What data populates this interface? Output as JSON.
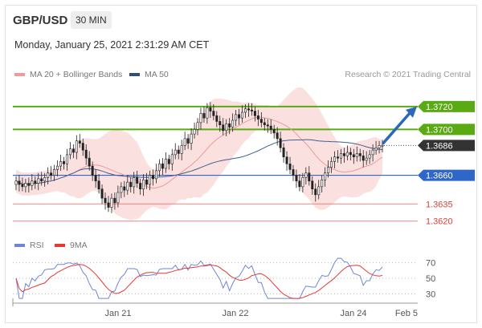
{
  "header": {
    "pair": "GBP/USD",
    "timeframe": "30 MIN",
    "datetime": "Monday, January 25, 2021 2:31:29 AM CET",
    "copyright": "Research © 2021 Trading Central"
  },
  "legend": {
    "ma20": "MA 20 + Bollinger Bands",
    "ma50": "MA 50",
    "rsi": "RSI",
    "rsi_ma": "9MA"
  },
  "colors": {
    "resistance": "#5aaa14",
    "pivot": "#2f66c9",
    "support": "#f08282",
    "current": "#333333",
    "candle_up": "#ffffff",
    "candle_down": "#222222",
    "bollinger": "#fadada",
    "ma20": "#ef9a9a",
    "ma50": "#3f5f8f",
    "rsi": "#6f86d6",
    "rsi_ma": "#e53935",
    "arrow": "#2c67b8"
  },
  "chart_data": {
    "type": "candlestick",
    "y_range": [
      1.361,
      1.3736
    ],
    "levels": [
      {
        "label": "1.3720",
        "value": 1.372,
        "kind": "resistance"
      },
      {
        "label": "1.3700",
        "value": 1.37,
        "kind": "resistance"
      },
      {
        "label": "1.3686",
        "value": 1.3686,
        "kind": "current"
      },
      {
        "label": "1.3660",
        "value": 1.366,
        "kind": "pivot"
      },
      {
        "label": "1.3635",
        "value": 1.3635,
        "kind": "support"
      },
      {
        "label": "1.3620",
        "value": 1.362,
        "kind": "support"
      }
    ],
    "x_ticks": [
      "Jan 21",
      "Jan 22",
      "Jan 24",
      "Feb 5"
    ],
    "rsi_ticks": [
      "70",
      "50",
      "30"
    ],
    "rsi_range": [
      20,
      80
    ],
    "closes": [
      1.3655,
      1.3652,
      1.365,
      1.3653,
      1.3651,
      1.3655,
      1.3653,
      1.3657,
      1.3655,
      1.3658,
      1.3662,
      1.366,
      1.3665,
      1.3668,
      1.3672,
      1.367,
      1.3678,
      1.3683,
      1.368,
      1.369,
      1.3688,
      1.3682,
      1.3675,
      1.3668,
      1.366,
      1.3655,
      1.3648,
      1.364,
      1.3636,
      1.3632,
      1.364,
      1.3636,
      1.3645,
      1.365,
      1.3647,
      1.3654,
      1.365,
      1.3658,
      1.3653,
      1.3648,
      1.3656,
      1.3652,
      1.366,
      1.3657,
      1.3664,
      1.367,
      1.3666,
      1.3674,
      1.367,
      1.3678,
      1.3682,
      1.3679,
      1.3686,
      1.3692,
      1.3688,
      1.3696,
      1.37,
      1.3706,
      1.3714,
      1.371,
      1.3719,
      1.3716,
      1.3712,
      1.3707,
      1.3704,
      1.3699,
      1.3705,
      1.3702,
      1.3708,
      1.3713,
      1.371,
      1.3715,
      1.3718,
      1.3717,
      1.3716,
      1.3712,
      1.3709,
      1.3706,
      1.3704,
      1.3703,
      1.37,
      1.3697,
      1.3692,
      1.3684,
      1.3676,
      1.367,
      1.3665,
      1.366,
      1.3655,
      1.365,
      1.3658,
      1.3662,
      1.3655,
      1.3648,
      1.3643,
      1.365,
      1.3656,
      1.3662,
      1.3667,
      1.3672,
      1.3676,
      1.3675,
      1.3679,
      1.3677,
      1.368,
      1.3678,
      1.3676,
      1.3679,
      1.3677,
      1.3673,
      1.3675,
      1.3678,
      1.3682,
      1.3684,
      1.3686,
      1.3686
    ]
  }
}
